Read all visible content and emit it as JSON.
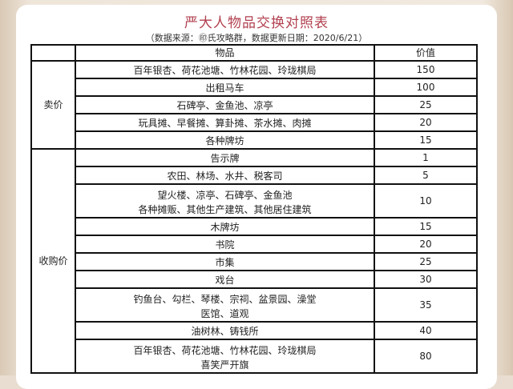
{
  "title": "严大人物品交换对照表",
  "subtitle": "（数据来源：㊞氏攻略群，数据更新日期：2020/6/21）",
  "colors": {
    "title": "#b2404f",
    "border": "#111111"
  },
  "table": {
    "headers": [
      "",
      "物品",
      "价值"
    ],
    "sections": [
      {
        "label": "卖价",
        "rows": [
          {
            "items": [
              "百年银杏、荷花池塘、竹林花园、玲珑棋局"
            ],
            "value": "150"
          },
          {
            "items": [
              "出租马车"
            ],
            "value": "100"
          },
          {
            "items": [
              "石碑亭、金鱼池、凉亭"
            ],
            "value": "25"
          },
          {
            "items": [
              "玩具摊、早餐摊、算卦摊、茶水摊、肉摊"
            ],
            "value": "20"
          },
          {
            "items": [
              "各种牌坊"
            ],
            "value": "15"
          }
        ]
      },
      {
        "label": "收购价",
        "rows": [
          {
            "items": [
              "告示牌"
            ],
            "value": "1"
          },
          {
            "items": [
              "农田、林场、水井、税客司"
            ],
            "value": "5"
          },
          {
            "items": [
              "望火楼、凉亭、石碑亭、金鱼池",
              "各种摊贩、其他生产建筑、其他居住建筑"
            ],
            "value": "10"
          },
          {
            "items": [
              "木牌坊"
            ],
            "value": "15"
          },
          {
            "items": [
              "书院"
            ],
            "value": "20"
          },
          {
            "items": [
              "市集"
            ],
            "value": "25"
          },
          {
            "items": [
              "戏台"
            ],
            "value": "30"
          },
          {
            "items": [
              "钓鱼台、勾栏、琴楼、宗祠、盆景园、澡堂",
              "医馆、道观"
            ],
            "value": "35"
          },
          {
            "items": [
              "油树林、铸钱所"
            ],
            "value": "40"
          },
          {
            "items": [
              "百年银杏、荷花池塘、竹林花园、玲珑棋局",
              "喜笑严开旗"
            ],
            "value": "80"
          }
        ]
      }
    ]
  }
}
